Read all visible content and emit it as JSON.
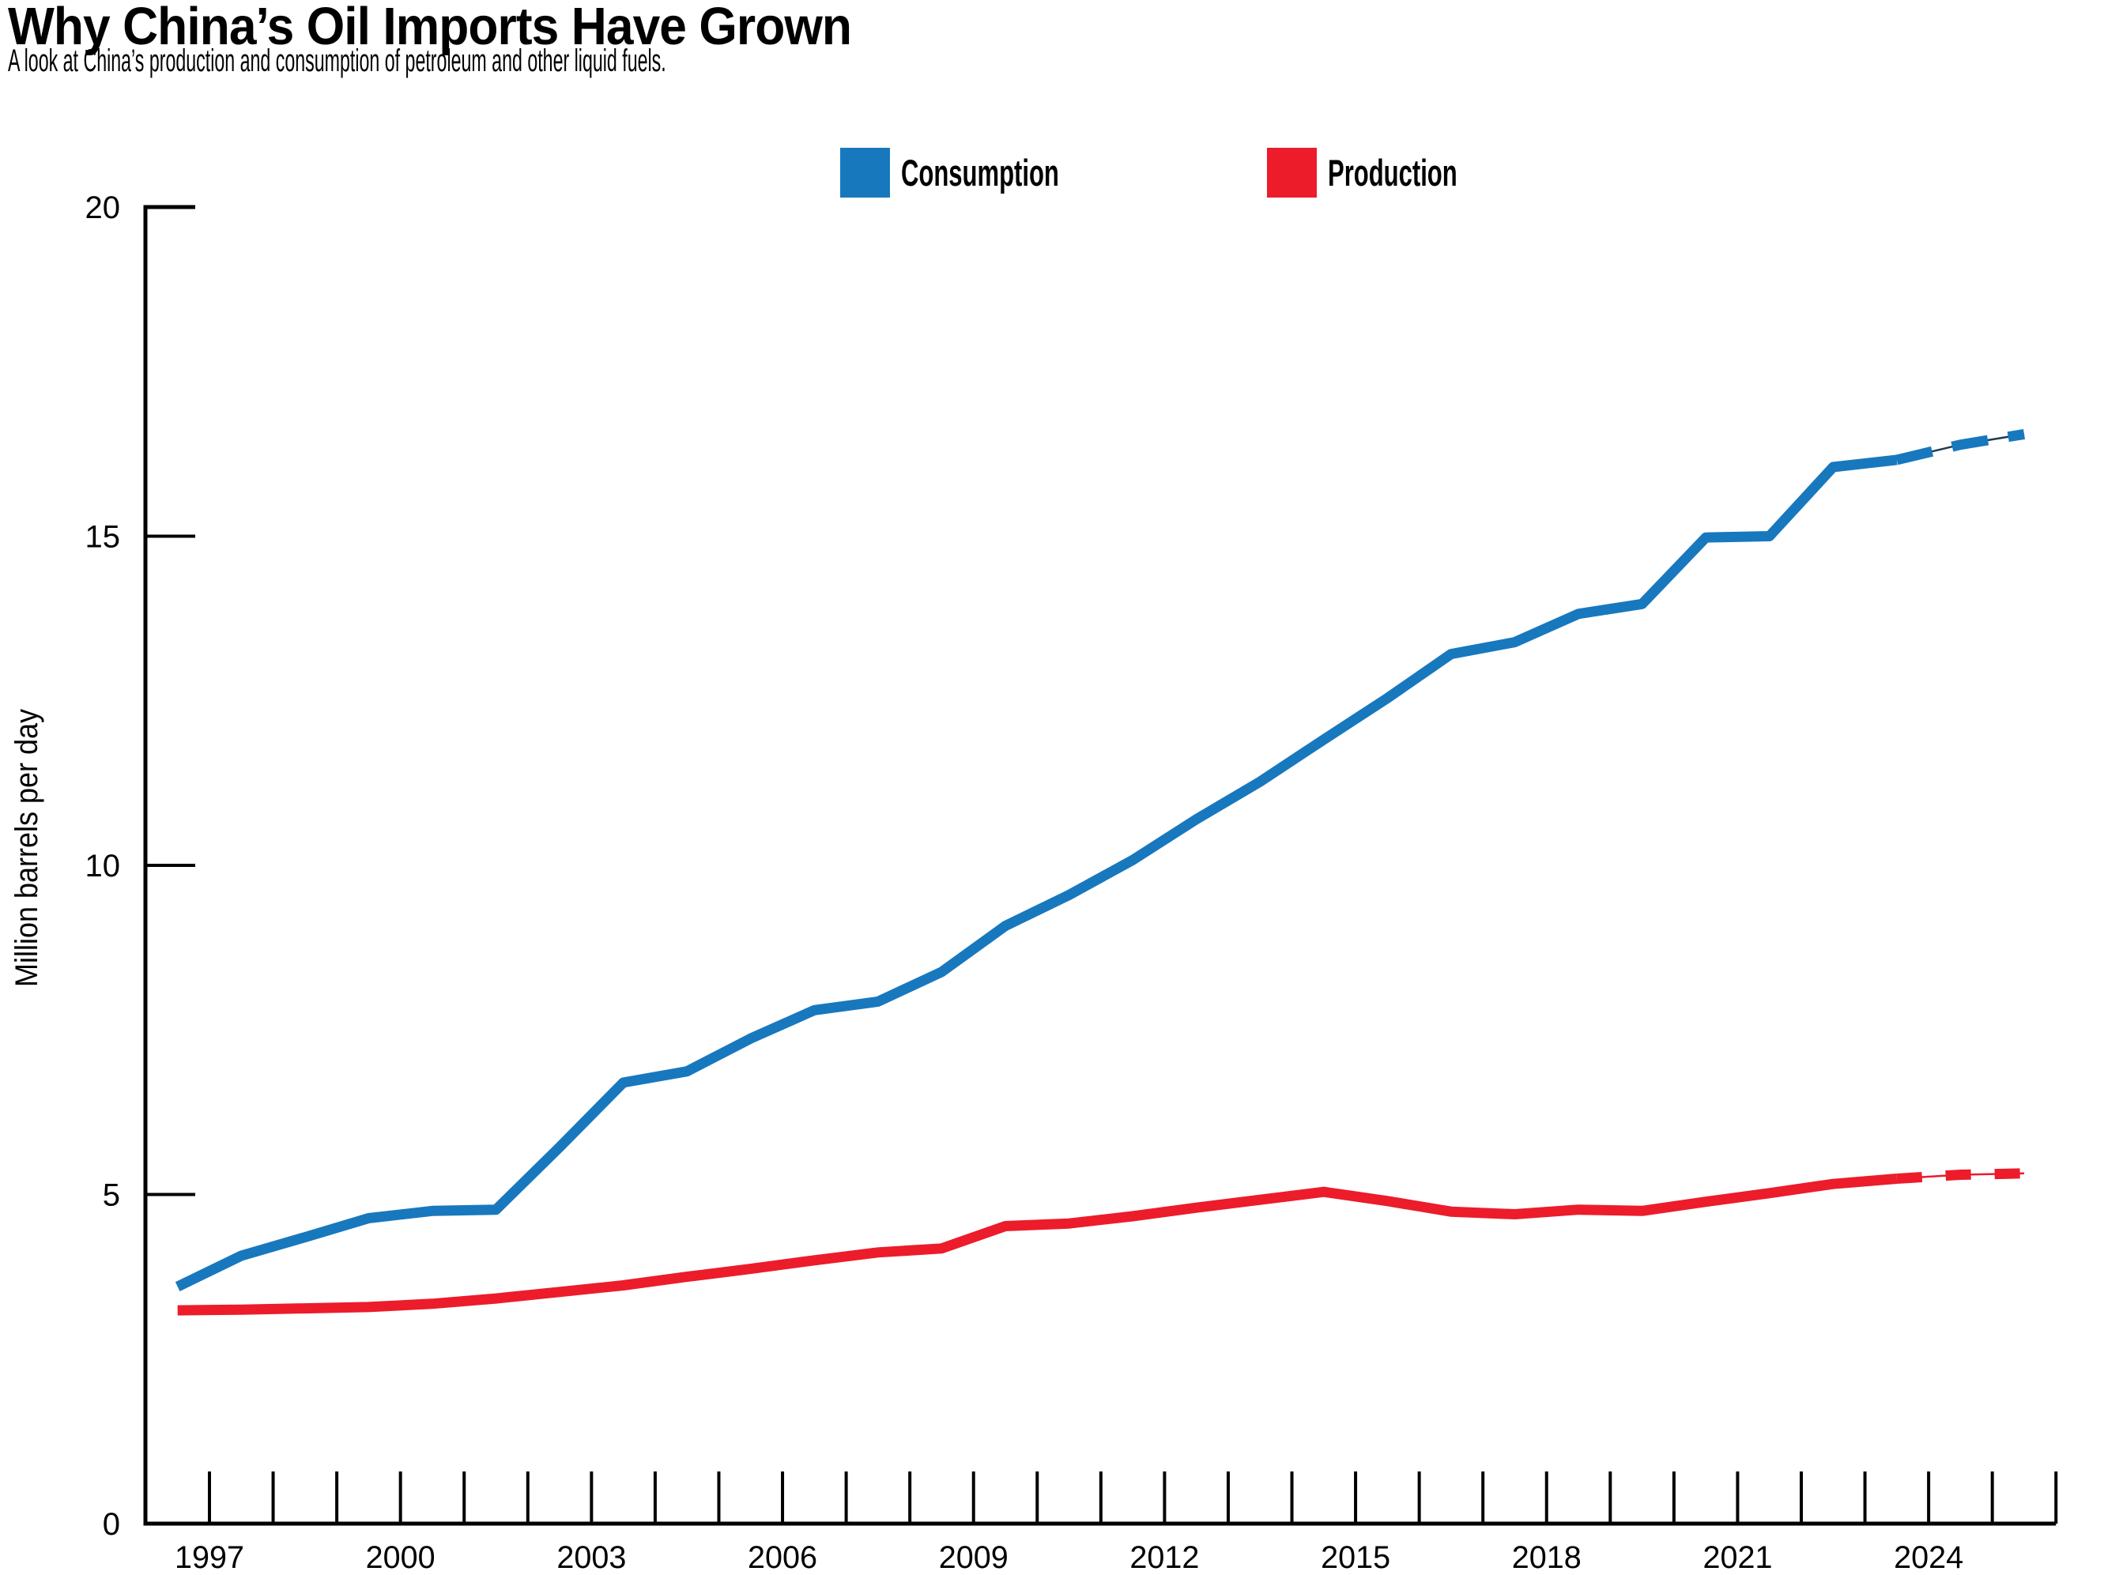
{
  "header": {
    "title": "Why China’s Oil Imports Have Grown",
    "subtitle": "A look at China’s production and consumption of petroleum and other liquid fuels."
  },
  "chart_data": {
    "type": "line",
    "title": "Why China’s Oil Imports Have Grown",
    "subtitle": "A look at China’s production and consumption of petroleum and other liquid fuels.",
    "ylabel": "Million barrels per day",
    "xlabel": "",
    "ylim": [
      0,
      20
    ],
    "yticks": [
      0,
      5,
      10,
      15,
      20
    ],
    "xtick_labels": [
      1997,
      2000,
      2003,
      2006,
      2009,
      2012,
      2015,
      2018,
      2021,
      2024
    ],
    "axis_years": [
      1996,
      2026
    ],
    "minor_xticks_every_year": true,
    "grid": false,
    "legend_position": "top-center",
    "x": [
      1996,
      1997,
      1998,
      1999,
      2000,
      2001,
      2002,
      2003,
      2004,
      2005,
      2006,
      2007,
      2008,
      2009,
      2010,
      2011,
      2012,
      2013,
      2014,
      2015,
      2016,
      2017,
      2018,
      2019,
      2020,
      2021,
      2022,
      2023,
      2024,
      2025
    ],
    "series": [
      {
        "key": "consumption",
        "name": "Consumption",
        "color": "#1878be",
        "dash": "46 26",
        "forecast_connector_color": "#1f3a52",
        "forecast_dashed_from": 2023,
        "values": [
          3.6,
          4.07,
          4.35,
          4.64,
          4.75,
          4.77,
          5.72,
          6.7,
          6.87,
          7.37,
          7.8,
          7.93,
          8.38,
          9.08,
          9.55,
          10.08,
          10.7,
          11.27,
          11.91,
          12.54,
          13.21,
          13.39,
          13.82,
          13.97,
          14.98,
          15.0,
          16.05,
          16.16,
          16.39,
          16.55
        ]
      },
      {
        "key": "production",
        "name": "Production",
        "color": "#ec1c2b",
        "dash": "32 30",
        "forecast_connector_color": "#ec1c2b",
        "forecast_dashed_from": 2023,
        "values": [
          3.24,
          3.25,
          3.27,
          3.29,
          3.34,
          3.42,
          3.52,
          3.62,
          3.75,
          3.87,
          4.0,
          4.12,
          4.18,
          4.52,
          4.56,
          4.67,
          4.8,
          4.92,
          5.04,
          4.9,
          4.74,
          4.7,
          4.77,
          4.75,
          4.89,
          5.02,
          5.16,
          5.24,
          5.3,
          5.32
        ]
      }
    ]
  }
}
